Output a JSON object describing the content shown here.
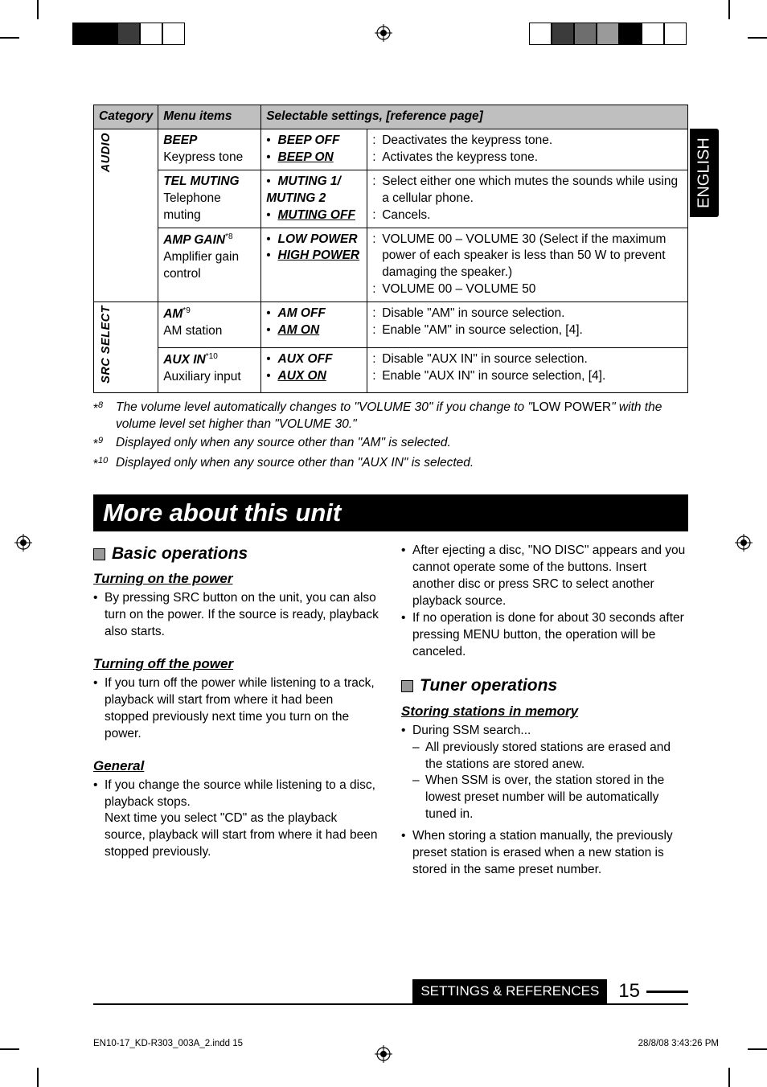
{
  "crop_marks": {
    "color": "#000000"
  },
  "color_bars_left": [
    "#000000",
    "#000000",
    "#3b3b3b",
    "#ffffff",
    "#ffffff"
  ],
  "color_bars_right": [
    "#ffffff",
    "#3b3b3b",
    "#6e6e6e",
    "#9a9a9a",
    "#000000",
    "#ffffff",
    "#ffffff"
  ],
  "side_tab": "ENGLISH",
  "table": {
    "headers": [
      "Category",
      "Menu items",
      "Selectable settings, [reference page]"
    ],
    "groups": [
      {
        "category": "AUDIO",
        "rows": [
          {
            "title": "BEEP",
            "subtitle": "Keypress tone",
            "options": [
              {
                "label": "BEEP OFF",
                "default": false,
                "desc": "Deactivates the keypress tone."
              },
              {
                "label": "BEEP ON",
                "default": true,
                "desc": "Activates the keypress tone."
              }
            ]
          },
          {
            "title": "TEL MUTING",
            "subtitle": "Telephone muting",
            "options": [
              {
                "label": "MUTING 1/ MUTING 2",
                "default": false,
                "desc": "Select either one which mutes the sounds while using a cellular phone."
              },
              {
                "label": "MUTING OFF",
                "default": true,
                "desc": "Cancels."
              }
            ]
          },
          {
            "title": "AMP GAIN",
            "sup": "*8",
            "subtitle": "Amplifier gain control",
            "options": [
              {
                "label": "LOW POWER",
                "default": false,
                "desc": "VOLUME 00 – VOLUME 30 (Select if the maximum power of each speaker is less than 50 W to prevent damaging the speaker.)"
              },
              {
                "label": "HIGH POWER",
                "default": true,
                "desc": "VOLUME 00 – VOLUME 50"
              }
            ]
          }
        ]
      },
      {
        "category": "SRC SELECT",
        "rows": [
          {
            "title": "AM",
            "sup": "*9",
            "subtitle": "AM station",
            "options": [
              {
                "label": "AM OFF",
                "default": false,
                "desc": "Disable \"AM\" in source selection."
              },
              {
                "label": "AM ON",
                "default": true,
                "desc": "Enable \"AM\" in source selection, [4]."
              }
            ]
          },
          {
            "title": "AUX IN",
            "sup": "*10",
            "subtitle": "Auxiliary input",
            "options": [
              {
                "label": "AUX OFF",
                "default": false,
                "desc": "Disable \"AUX IN\" in source selection."
              },
              {
                "label": "AUX ON",
                "default": true,
                "desc": "Enable \"AUX IN\" in source selection, [4]."
              }
            ]
          }
        ]
      }
    ]
  },
  "footnotes": [
    {
      "mark": "*8",
      "pre": "The volume level automatically changes to \"VOLUME 30\" if you change to \"",
      "ns": "LOW POWER",
      "post": "\" with the volume level set higher than \"VOLUME 30.\""
    },
    {
      "mark": "*9",
      "text": "Displayed only when any source other than \"AM\" is selected."
    },
    {
      "mark": "*10",
      "text": "Displayed only when any source other than \"AUX IN\" is selected."
    }
  ],
  "section_title": "More about this unit",
  "left_col": {
    "h": "Basic operations",
    "u1": "Turning on the power",
    "b1": "By pressing SRC button on the unit, you can also turn on the power. If the source is ready, playback also starts.",
    "u2": "Turning off the power",
    "b2": "If you turn off the power while listening to a track, playback will start from where it had been stopped previously next time you turn on the power.",
    "u3": "General",
    "b3a": "If you change the source while listening to a disc, playback stops.",
    "b3b": "Next time you select \"CD\" as the playback source, playback will start from where it had been stopped previously."
  },
  "right_col": {
    "b1": "After ejecting a disc, \"NO DISC\" appears and you cannot operate some of the buttons. Insert another disc or press SRC to select another playback source.",
    "b2": "If no operation is done for about 30 seconds after pressing MENU button, the operation will be canceled.",
    "h": "Tuner operations",
    "u1": "Storing stations in memory",
    "ssm": "During SSM search...",
    "ssm1": "All previously stored stations are erased and the stations are stored anew.",
    "ssm2": "When SSM is over, the station stored in the lowest preset number will be automatically tuned in.",
    "b3": "When storing a station manually, the previously preset station is erased when a new station is stored in the same preset number."
  },
  "footer": {
    "label": "SETTINGS & REFERENCES",
    "page": "15"
  },
  "print": {
    "left": "EN10-17_KD-R303_003A_2.indd   15",
    "right": "28/8/08   3:43:26 PM"
  }
}
